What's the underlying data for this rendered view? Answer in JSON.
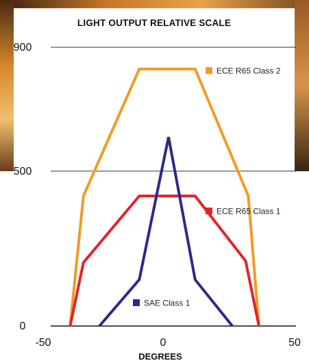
{
  "chart_data": {
    "type": "line",
    "title": "LIGHT OUTPUT RELATIVE SCALE",
    "xlabel": "DEGREES",
    "ylabel": "",
    "xlim": [
      -50,
      50
    ],
    "ylim": [
      0,
      900
    ],
    "xticks": [
      "-50",
      "0",
      "50"
    ],
    "yticks": [
      "0",
      "500",
      "900"
    ],
    "grid": "horizontal",
    "series": [
      {
        "name": "ECE R65 Class 2",
        "color": "#F39A24",
        "points": [
          [
            -37,
            0
          ],
          [
            -32,
            420
          ],
          [
            -11,
            830
          ],
          [
            10,
            830
          ],
          [
            30,
            420
          ],
          [
            34,
            0
          ]
        ]
      },
      {
        "name": "ECE R65 Class 1",
        "color": "#E2232A",
        "points": [
          [
            -37,
            0
          ],
          [
            -32,
            205
          ],
          [
            -11,
            420
          ],
          [
            10,
            420
          ],
          [
            29,
            210
          ],
          [
            34,
            0
          ]
        ]
      },
      {
        "name": "SAE Class 1",
        "color": "#2B2A8C",
        "points": [
          [
            -26,
            0
          ],
          [
            -11,
            150
          ],
          [
            0,
            610
          ],
          [
            10,
            150
          ],
          [
            24,
            0
          ]
        ]
      }
    ]
  },
  "colors": {
    "axis_line": "#111111",
    "grid_line": "#333333",
    "background_photo_warm": "#c97a2a",
    "background_photo_dark": "#3a2414"
  }
}
